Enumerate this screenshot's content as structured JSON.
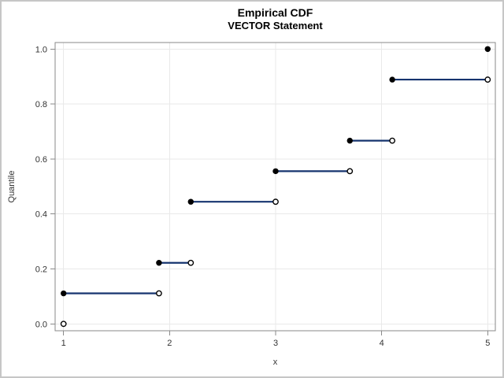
{
  "window": {
    "background": "#ffffff",
    "border_color": "#c6c6c6"
  },
  "chart_data": {
    "type": "line",
    "subtype": "empirical-cdf-step-function",
    "title": "Empirical CDF",
    "subtitle": "VECTOR Statement",
    "xlabel": "x",
    "ylabel": "Quantile",
    "xlim": [
      1,
      5
    ],
    "ylim": [
      0,
      1
    ],
    "grid": true,
    "legend": "none",
    "x_ticks": [
      {
        "value": 1,
        "label": "1"
      },
      {
        "value": 2,
        "label": "2"
      },
      {
        "value": 3,
        "label": "3"
      },
      {
        "value": 4,
        "label": "4"
      },
      {
        "value": 5,
        "label": "5"
      }
    ],
    "y_ticks": [
      {
        "value": 0.0,
        "label": "0.0"
      },
      {
        "value": 0.2,
        "label": "0.2"
      },
      {
        "value": 0.4,
        "label": "0.4"
      },
      {
        "value": 0.6,
        "label": "0.6"
      },
      {
        "value": 0.8,
        "label": "0.8"
      },
      {
        "value": 1.0,
        "label": "1.0"
      }
    ],
    "data_values": [
      1,
      1.9,
      2.2,
      2.2,
      3,
      3.7,
      4.1,
      4.1,
      5
    ],
    "steps": [
      {
        "x_start": 1.0,
        "x_end": 1.9,
        "quantile": 0.1111
      },
      {
        "x_start": 1.9,
        "x_end": 2.2,
        "quantile": 0.2222
      },
      {
        "x_start": 2.2,
        "x_end": 3.0,
        "quantile": 0.4444
      },
      {
        "x_start": 3.0,
        "x_end": 3.7,
        "quantile": 0.5556
      },
      {
        "x_start": 3.7,
        "x_end": 4.1,
        "quantile": 0.6667
      },
      {
        "x_start": 4.1,
        "x_end": 5.0,
        "quantile": 0.8889
      }
    ],
    "open_marker_at_min": {
      "x": 1.0,
      "quantile": 0.0
    },
    "closed_marker_at_max": {
      "x": 5.0,
      "quantile": 1.0
    },
    "colors": {
      "step_line": "#16346F",
      "marker_fill": "#000000",
      "open_marker_fill": "#ffffff",
      "frame": "#8a8a8a",
      "tick": "#8a8a8a",
      "gridline": "#e9e9e9",
      "tick_label": "#333333",
      "title": "#000000"
    }
  }
}
